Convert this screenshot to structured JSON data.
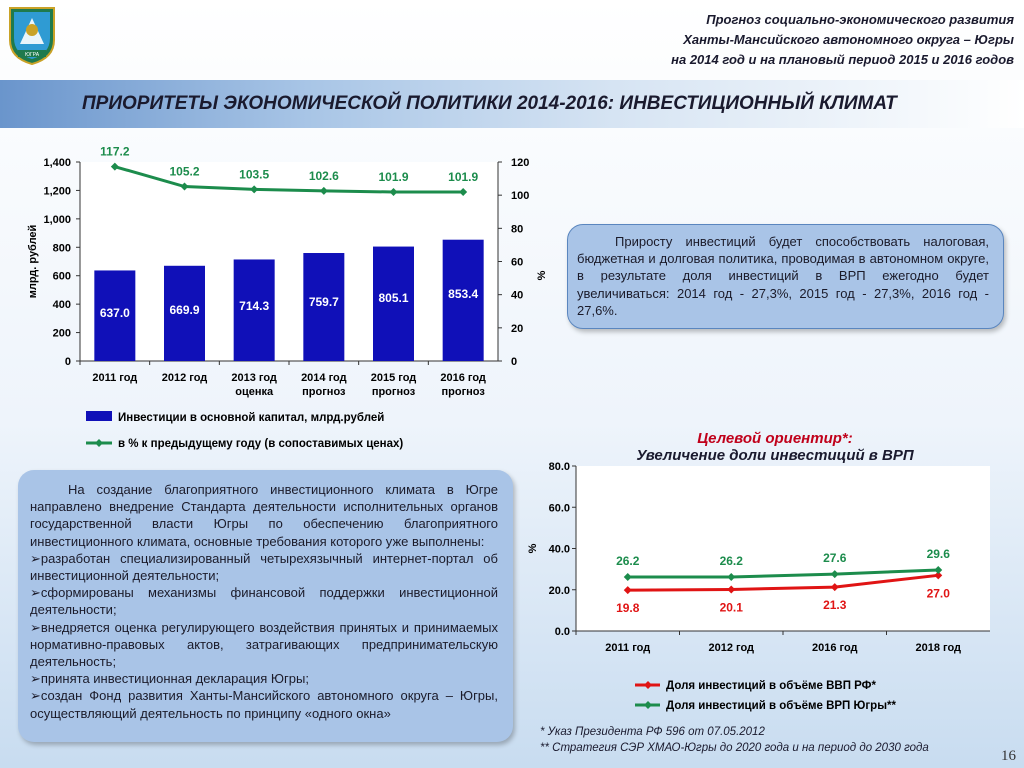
{
  "header": {
    "line1": "Прогноз социально-экономического развития",
    "line2": "Ханты-Мансийского автономного округа – Югры",
    "line3": "на 2014 год и на плановый период 2015 и 2016 годов"
  },
  "emblem": {
    "label": "ЮГРА"
  },
  "title": "ПРИОРИТЕТЫ ЭКОНОМИЧЕСКОЙ ПОЛИТИКИ 2014-2016:  ИНВЕСТИЦИОННЫЙ КЛИМАТ",
  "right_box_text": "Приросту инвестиций будет способствовать налоговая, бюджетная и долговая политика, проводимая в автономном округе, в результате доля инвестиций в ВРП ежегодно будет увеличиваться: 2014 год - 27,3%, 2015 год - 27,3%, 2016 год - 27,6%.",
  "left_panel": {
    "paragraphs": [
      "На создание благоприятного инвестиционного климата в Югре направлено внедрение Стандарта деятельности исполнительных органов государственной власти Югры по обеспечению благоприятного инвестиционного климата, основные требования которого уже выполнены:",
      "➢разработан специализированный четырехязычный интернет-портал об инвестиционной деятельности;",
      "➢сформированы механизмы финансовой поддержки инвестиционной деятельности;",
      "➢внедряется оценка регулирующего воздействия принятых и принимаемых нормативно-правовых актов, затрагивающих предпринимательскую деятельность;",
      "➢принята инвестиционная декларация Югры;",
      "➢создан Фонд развития Ханты-Мансийского автономного округа – Югры, осуществляющий деятельность  по принципу «одного окна»"
    ]
  },
  "target": {
    "title1": "Целевой ориентир*:",
    "title2": "Увеличение доли инвестиций в ВРП"
  },
  "footnotes": [
    "*   Указ Президента РФ 596 от 07.05.2012",
    "**   Стратегия СЭР ХМАО-Югры до 2020 года и на период до 2030 года"
  ],
  "page_number": "16",
  "colors": {
    "bar": "#1010b8",
    "green": "#1c8c4c",
    "red": "#e01414"
  },
  "chart_data": [
    {
      "type": "bar",
      "categories": [
        "2011 год",
        "2012 год",
        "2013 год\nоценка",
        "2014 год\nпрогноз",
        "2015 год\nпрогноз",
        "2016 год\nпрогноз"
      ],
      "series": [
        {
          "name": "Инвестиции в основной капитал, млрд.рублей",
          "type": "bar",
          "axis": "left",
          "values": [
            637.0,
            669.9,
            714.3,
            759.7,
            805.1,
            853.4
          ],
          "labels": [
            "637.0",
            "669.9",
            "714.3",
            "759.7",
            "805.1",
            "853.4"
          ]
        },
        {
          "name": "в % к предыдущему году (в сопоставимых ценах)",
          "type": "line",
          "axis": "right",
          "values": [
            117.2,
            105.2,
            103.5,
            102.6,
            101.9,
            101.9
          ],
          "labels": [
            "117.2",
            "105.2",
            "103.5",
            "102.6",
            "101.9",
            "101.9"
          ]
        }
      ],
      "ylabel": "млрд. рублей",
      "ylim": [
        0,
        1400
      ],
      "yticks": [
        "0",
        "200",
        "400",
        "600",
        "800",
        "1,000",
        "1,200",
        "1,400"
      ],
      "y2label": "%",
      "y2lim": [
        0,
        120
      ],
      "y2ticks": [
        "0",
        "20",
        "40",
        "60",
        "80",
        "100",
        "120"
      ],
      "legend_position": "bottom"
    },
    {
      "type": "line",
      "categories": [
        "2011 год",
        "2012 год",
        "2016 год",
        "2018 год"
      ],
      "series": [
        {
          "name": "Доля инвестиций в объёме ВВП РФ*",
          "values": [
            19.8,
            20.1,
            21.3,
            27.0
          ],
          "labels": [
            "19.8",
            "20.1",
            "21.3",
            "27.0"
          ]
        },
        {
          "name": "Доля инвестиций в объёме ВРП Югры**",
          "values": [
            26.2,
            26.2,
            27.6,
            29.6
          ],
          "labels": [
            "26.2",
            "26.2",
            "27.6",
            "29.6"
          ]
        }
      ],
      "ylabel": "%",
      "ylim": [
        0,
        80
      ],
      "yticks": [
        "0.0",
        "20.0",
        "40.0",
        "60.0",
        "80.0"
      ],
      "legend_position": "bottom"
    }
  ]
}
